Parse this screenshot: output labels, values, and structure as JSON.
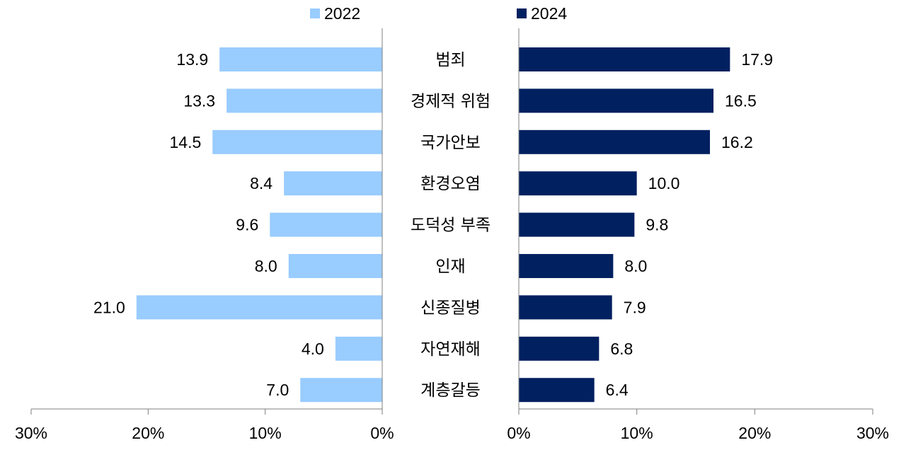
{
  "chart_data": {
    "type": "bar",
    "orientation": "horizontal-butterfly",
    "title": "",
    "categories": [
      "범죄",
      "경제적 위험",
      "국가안보",
      "환경오염",
      "도덕성 부족",
      "인재",
      "신종질병",
      "자연재해",
      "계층갈등"
    ],
    "series": [
      {
        "name": "2022",
        "values": [
          13.9,
          13.3,
          14.5,
          8.4,
          9.6,
          8.0,
          21.0,
          4.0,
          7.0
        ],
        "value_labels": [
          "13.9",
          "13.3",
          "14.5",
          "8.4",
          "9.6",
          "8.0",
          "21.0",
          "4.0",
          "7.0"
        ],
        "color": "#99ccff",
        "side": "left"
      },
      {
        "name": "2024",
        "values": [
          17.9,
          16.5,
          16.2,
          10.0,
          9.8,
          8.0,
          7.9,
          6.8,
          6.4
        ],
        "value_labels": [
          "17.9",
          "16.5",
          "16.2",
          "10.0",
          "9.8",
          "8.0",
          "7.9",
          "6.8",
          "6.4"
        ],
        "color": "#002060",
        "side": "right"
      }
    ],
    "xlim": [
      0,
      30
    ],
    "left_ticks": [
      "30%",
      "20%",
      "10%",
      "0%"
    ],
    "right_ticks": [
      "0%",
      "10%",
      "20%",
      "30%"
    ],
    "tick_values": [
      0,
      10,
      20,
      30
    ],
    "legend_position": "top-center",
    "grid": false
  },
  "legend": {
    "first": "2022",
    "second": "2024"
  }
}
